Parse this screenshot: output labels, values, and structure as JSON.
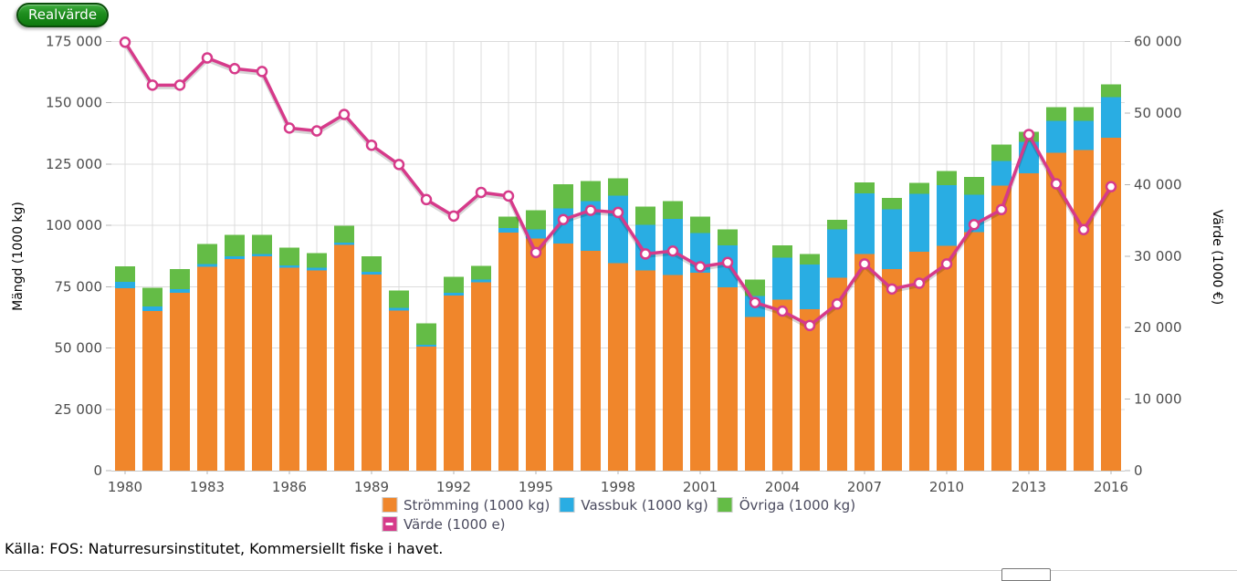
{
  "button": {
    "label": "Realvärde"
  },
  "source_note": "Källa: FOS: Naturresursinstitutet, Kommersiellt fiske i havet.",
  "colors": {
    "button_green": "#128012",
    "stromming_orange": "#F0862B",
    "vassbuk_blue": "#29ADE3",
    "ovriga_green": "#64BC46",
    "varde_pink": "#D63A8A",
    "grid": "#dcdcdc",
    "axis_text": "#4d4d4d"
  },
  "chart_data": {
    "type": "bar",
    "subtype": "stacked bars with line overlay",
    "x": [
      1980,
      1981,
      1982,
      1983,
      1984,
      1985,
      1986,
      1987,
      1988,
      1989,
      1990,
      1991,
      1992,
      1993,
      1994,
      1995,
      1996,
      1997,
      1998,
      1999,
      2000,
      2001,
      2002,
      2003,
      2004,
      2005,
      2006,
      2007,
      2008,
      2009,
      2010,
      2011,
      2012,
      2013,
      2014,
      2015,
      2016
    ],
    "x_tick_labels": [
      "1980",
      "1983",
      "1986",
      "1989",
      "1992",
      "1995",
      "1998",
      "2001",
      "2004",
      "2007",
      "2010",
      "2013",
      "2016"
    ],
    "left_axis": {
      "title": "Mängd (1000 kg)",
      "min": 0,
      "max": 175000,
      "step": 25000,
      "tick_labels": [
        "0",
        "25 000",
        "50 000",
        "75 000",
        "100 000",
        "125 000",
        "150 000",
        "175 000"
      ]
    },
    "right_axis": {
      "title": "Värde (1000 €)",
      "min": 0,
      "max": 60000,
      "step": 10000,
      "tick_labels": [
        "0",
        "10 000",
        "20 000",
        "30 000",
        "40 000",
        "50 000",
        "60 000"
      ]
    },
    "grid": "on",
    "legend_position": "bottom-center",
    "series": [
      {
        "name": "Strömming (1000 kg)",
        "type": "bar",
        "axis": "left",
        "color": "#F0862B",
        "values": [
          74400,
          65100,
          72600,
          83200,
          86300,
          87400,
          82700,
          81700,
          92000,
          80000,
          65300,
          50500,
          71500,
          76800,
          97100,
          94600,
          92600,
          89700,
          84700,
          81700,
          79700,
          80700,
          74800,
          62700,
          69800,
          65800,
          78700,
          88400,
          82200,
          89300,
          91700,
          97300,
          116300,
          121300,
          129600,
          130800,
          135800
        ]
      },
      {
        "name": "Vassbuk (1000 kg)",
        "type": "bar",
        "axis": "left",
        "color": "#29ADE3",
        "values": [
          2600,
          1900,
          1400,
          1100,
          1100,
          1000,
          1000,
          1000,
          900,
          1000,
          1000,
          900,
          1100,
          1100,
          1900,
          3700,
          14400,
          20200,
          27500,
          18500,
          23000,
          16100,
          17000,
          8600,
          17000,
          18200,
          19600,
          24600,
          24400,
          23600,
          24800,
          15300,
          9900,
          12700,
          13100,
          11900,
          16500
        ]
      },
      {
        "name": "Övriga (1000 kg)",
        "type": "bar",
        "axis": "left",
        "color": "#64BC46",
        "values": [
          6400,
          7500,
          8200,
          8200,
          8800,
          7700,
          7200,
          6000,
          7000,
          6500,
          7200,
          8700,
          6500,
          5600,
          4600,
          7800,
          9700,
          8100,
          7100,
          7400,
          7200,
          6700,
          6600,
          6600,
          5100,
          4300,
          4000,
          4600,
          4700,
          4400,
          5600,
          7200,
          6800,
          4100,
          5500,
          5500,
          5200
        ]
      },
      {
        "name": "Värde (1000 e)",
        "type": "line",
        "axis": "right",
        "color": "#D63A8A",
        "values": [
          59900,
          53900,
          53900,
          57700,
          56200,
          55800,
          47900,
          47500,
          49800,
          45500,
          42800,
          37900,
          35600,
          38900,
          38400,
          30500,
          35100,
          36400,
          36100,
          30300,
          30700,
          28500,
          29100,
          23500,
          22300,
          20300,
          23300,
          28900,
          25400,
          26200,
          28900,
          34400,
          36500,
          47000,
          40100,
          33700,
          39700
        ]
      }
    ]
  }
}
